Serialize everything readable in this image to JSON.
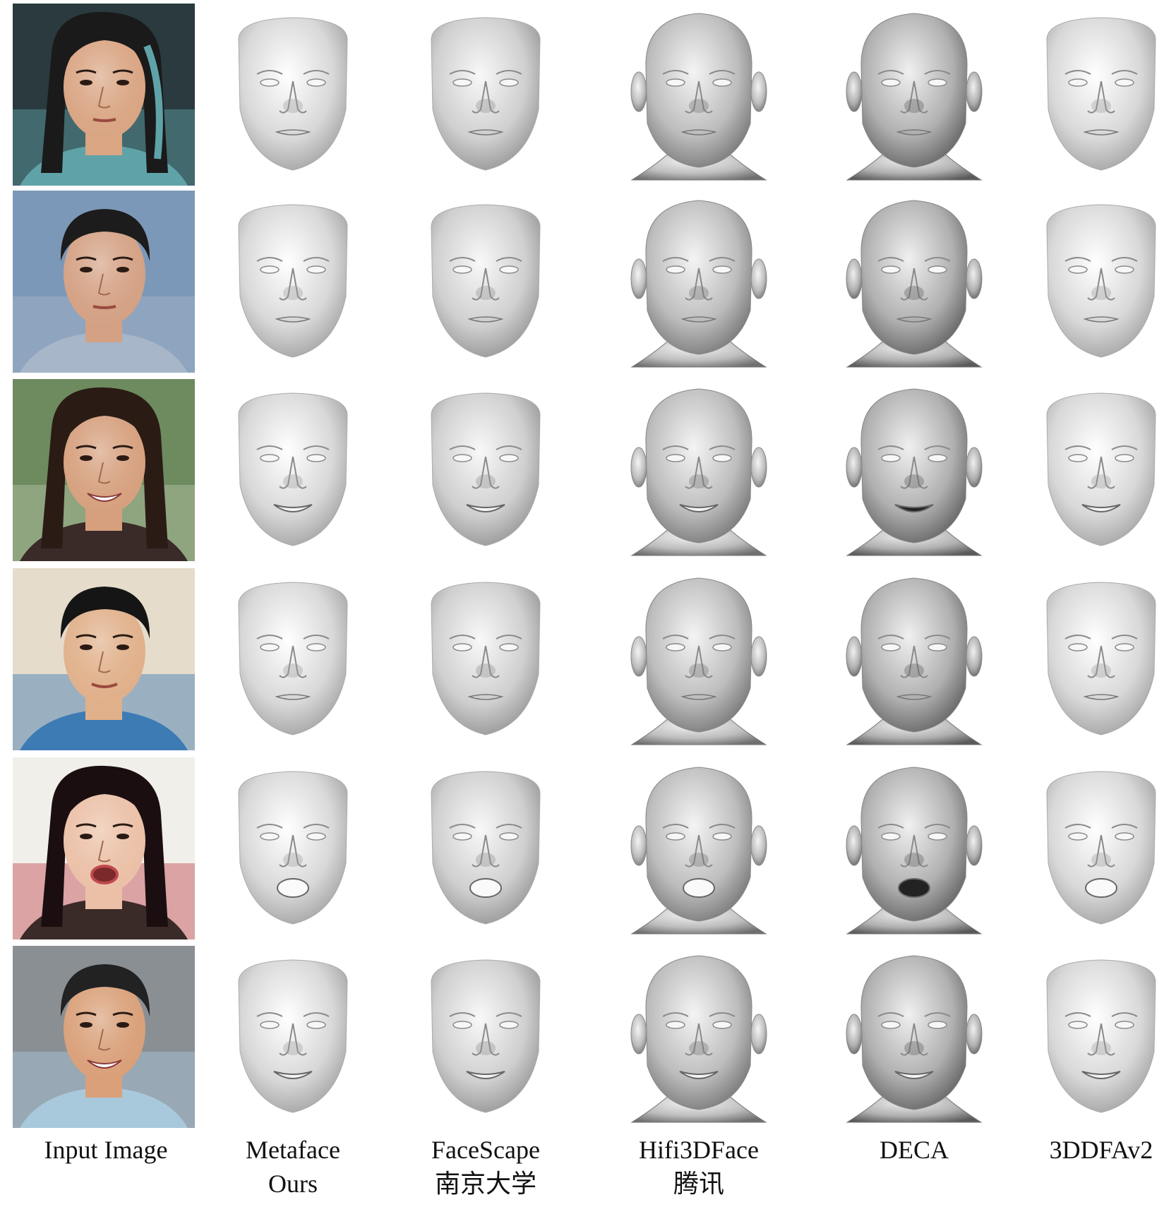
{
  "figure": {
    "columns": [
      {
        "id": "input",
        "lines": [
          "Input Image"
        ]
      },
      {
        "id": "metaface",
        "lines": [
          "Metaface",
          "Ours"
        ]
      },
      {
        "id": "facescape",
        "lines": [
          "FaceScape",
          "南京大学"
        ]
      },
      {
        "id": "hifi3dface",
        "lines": [
          "Hifi3DFace",
          "腾讯"
        ]
      },
      {
        "id": "deca",
        "lines": [
          "DECA"
        ]
      },
      {
        "id": "3ddfav2",
        "lines": [
          "3DDFAv2"
        ]
      }
    ],
    "rows": [
      {
        "subject": "woman-with-teal-streaked-hair",
        "expression": "neutral",
        "palette": {
          "bg": "#2a3a3e",
          "hair": "#1a1a1a",
          "skin": "#d9a583",
          "accent": "#5fa3a8"
        }
      },
      {
        "subject": "man-short-dark-hair",
        "expression": "neutral",
        "palette": {
          "bg": "#7c98b8",
          "hair": "#1c1c1c",
          "skin": "#d4a184",
          "accent": "#a7b6c8"
        }
      },
      {
        "subject": "smiling-woman-long-hair",
        "expression": "smile",
        "palette": {
          "bg": "#6e8a5f",
          "hair": "#2a1b15",
          "skin": "#d6a07e",
          "accent": "#b7c6a6"
        }
      },
      {
        "subject": "young-man-dark-hair",
        "expression": "slight-open",
        "palette": {
          "bg": "#e6dccb",
          "hair": "#151515",
          "skin": "#e0b08a",
          "accent": "#3d7bb5"
        }
      },
      {
        "subject": "woman-with-earrings",
        "expression": "open-mouth",
        "palette": {
          "bg": "#f1efea",
          "hair": "#1a0e10",
          "skin": "#ebc0a7",
          "accent": "#c1484f"
        }
      },
      {
        "subject": "smiling-man-graying-hair",
        "expression": "smile",
        "palette": {
          "bg": "#8a8f94",
          "hair": "#222222",
          "skin": "#d9a079",
          "accent": "#a8c8dc"
        }
      }
    ],
    "mesh_styles": {
      "metaface": {
        "tone": "light",
        "ears": false,
        "neck": false
      },
      "facescape": {
        "tone": "light-textured",
        "ears": false,
        "neck": false
      },
      "hifi3dface": {
        "tone": "mid",
        "ears": true,
        "neck": true
      },
      "deca": {
        "tone": "mid-dark",
        "ears": true,
        "neck": true
      },
      "3ddfav2": {
        "tone": "light",
        "ears": false,
        "neck": false
      }
    }
  }
}
